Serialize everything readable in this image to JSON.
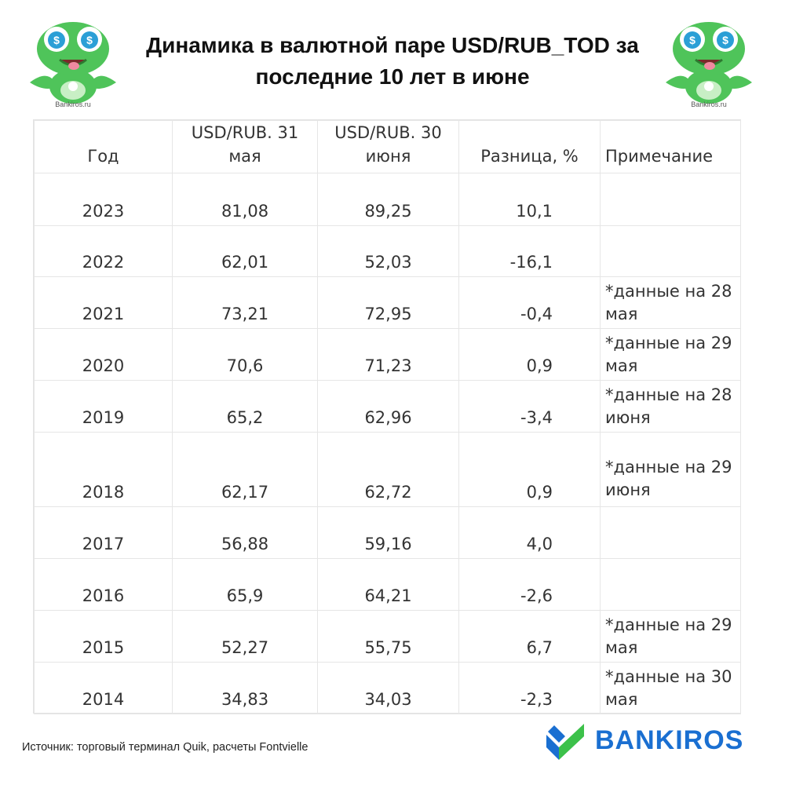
{
  "title": {
    "line1": "Динамика в валютной паре USD/RUB_TOD за",
    "line2": "последние 10 лет в июне"
  },
  "mascot": {
    "caption": "Bankiros.ru",
    "icon": "frog-mascot-icon"
  },
  "table": {
    "headers": {
      "year": "Год",
      "may_line1": "USD/RUB. 31",
      "may_line2": "мая",
      "june_line1": "USD/RUB. 30",
      "june_line2": "июня",
      "diff": "Разница, %",
      "note": "Примечание"
    },
    "rows": [
      {
        "year": "2023",
        "may": "81,08",
        "june": "89,25",
        "diff": "10,1",
        "note1": "",
        "note2": ""
      },
      {
        "year": "2022",
        "may": "62,01",
        "june": "52,03",
        "diff": "-16,1",
        "note1": "",
        "note2": ""
      },
      {
        "year": "2021",
        "may": "73,21",
        "june": "72,95",
        "diff": "-0,4",
        "note1": "*данные на 28",
        "note2": "мая"
      },
      {
        "year": "2020",
        "may": "70,6",
        "june": "71,23",
        "diff": "0,9",
        "note1": "*данные на 29",
        "note2": "мая"
      },
      {
        "year": "2019",
        "may": "65,2",
        "june": "62,96",
        "diff": "-3,4",
        "note1": "*данные на 28",
        "note2": "июня"
      },
      {
        "year": "2018",
        "may": "62,17",
        "june": "62,72",
        "diff": "0,9",
        "note1": "*данные на 29",
        "note2": "июня"
      },
      {
        "year": "2017",
        "may": "56,88",
        "june": "59,16",
        "diff": "4,0",
        "note1": "",
        "note2": ""
      },
      {
        "year": "2016",
        "may": "65,9",
        "june": "64,21",
        "diff": "-2,6",
        "note1": "",
        "note2": ""
      },
      {
        "year": "2015",
        "may": "52,27",
        "june": "55,75",
        "diff": "6,7",
        "note1": "*данные на 29",
        "note2": "мая"
      },
      {
        "year": "2014",
        "may": "34,83",
        "june": "34,03",
        "diff": "-2,3",
        "note1": "*данные на 30",
        "note2": "мая"
      }
    ]
  },
  "footer": {
    "source": "Источник: торговый терминал Quik, расчеты Fontvielle",
    "logo_text": "BANKIROS",
    "logo_icon": "bankiros-logo-icon"
  },
  "colors": {
    "brand_blue": "#1a6fd1",
    "brand_green": "#3cc14a",
    "mascot_green": "#4fc45a"
  }
}
